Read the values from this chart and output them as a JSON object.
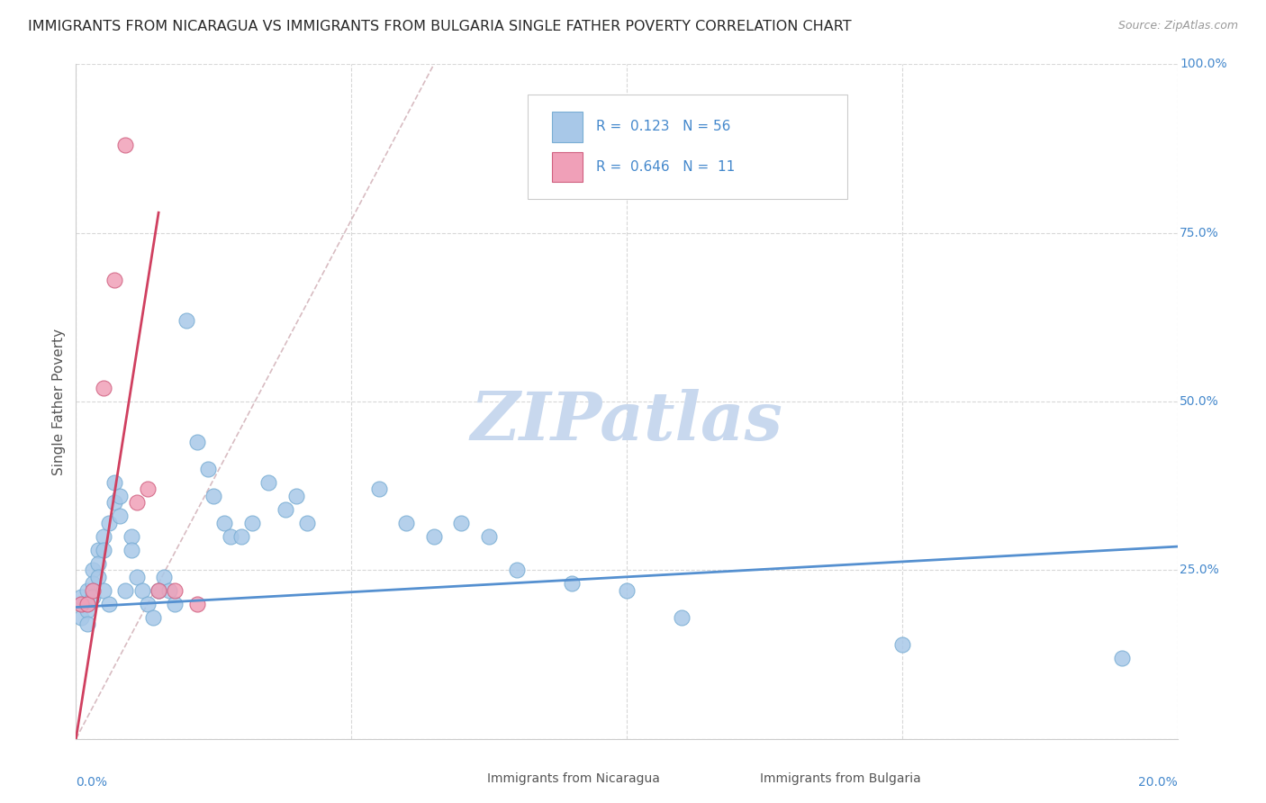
{
  "title": "IMMIGRANTS FROM NICARAGUA VS IMMIGRANTS FROM BULGARIA SINGLE FATHER POVERTY CORRELATION CHART",
  "source": "Source: ZipAtlas.com",
  "ylabel": "Single Father Poverty",
  "xlim": [
    0.0,
    0.2
  ],
  "ylim": [
    0.0,
    1.0
  ],
  "nicaragua_color": "#a8c8e8",
  "nicaragua_edge": "#7aaed4",
  "bulgaria_color": "#f0a0b8",
  "bulgaria_edge": "#d06080",
  "line_nicaragua_color": "#5590d0",
  "line_bulgaria_color": "#d04060",
  "dash_line_color": "#c8a0a8",
  "watermark_color": "#c8d8ee",
  "background_color": "#ffffff",
  "grid_color": "#d8d8d8",
  "title_color": "#282828",
  "axis_label_color": "#4488cc",
  "nicaragua_x": [
    0.001,
    0.001,
    0.001,
    0.002,
    0.002,
    0.002,
    0.002,
    0.003,
    0.003,
    0.003,
    0.004,
    0.004,
    0.004,
    0.005,
    0.005,
    0.005,
    0.006,
    0.006,
    0.007,
    0.007,
    0.008,
    0.008,
    0.009,
    0.01,
    0.01,
    0.011,
    0.012,
    0.013,
    0.014,
    0.015,
    0.016,
    0.017,
    0.018,
    0.02,
    0.022,
    0.024,
    0.025,
    0.027,
    0.028,
    0.03,
    0.032,
    0.035,
    0.038,
    0.04,
    0.042,
    0.055,
    0.06,
    0.065,
    0.07,
    0.075,
    0.08,
    0.09,
    0.1,
    0.11,
    0.15,
    0.19
  ],
  "nicaragua_y": [
    0.2,
    0.21,
    0.18,
    0.22,
    0.2,
    0.19,
    0.17,
    0.25,
    0.23,
    0.21,
    0.28,
    0.26,
    0.24,
    0.3,
    0.28,
    0.22,
    0.32,
    0.2,
    0.38,
    0.35,
    0.36,
    0.33,
    0.22,
    0.3,
    0.28,
    0.24,
    0.22,
    0.2,
    0.18,
    0.22,
    0.24,
    0.22,
    0.2,
    0.62,
    0.44,
    0.4,
    0.36,
    0.32,
    0.3,
    0.3,
    0.32,
    0.38,
    0.34,
    0.36,
    0.32,
    0.37,
    0.32,
    0.3,
    0.32,
    0.3,
    0.25,
    0.23,
    0.22,
    0.18,
    0.14,
    0.12
  ],
  "bulgaria_x": [
    0.001,
    0.002,
    0.003,
    0.005,
    0.007,
    0.009,
    0.011,
    0.013,
    0.015,
    0.018,
    0.022
  ],
  "bulgaria_y": [
    0.2,
    0.2,
    0.22,
    0.52,
    0.68,
    0.88,
    0.35,
    0.37,
    0.22,
    0.22,
    0.2
  ],
  "nic_line_x0": 0.0,
  "nic_line_x1": 0.2,
  "nic_line_y0": 0.195,
  "nic_line_y1": 0.285,
  "bul_line_x0": 0.0,
  "bul_line_x1": 0.015,
  "bul_line_y0": 0.0,
  "bul_line_y1": 0.78,
  "dash_line_x0": 0.0,
  "dash_line_x1": 0.065,
  "dash_line_y0": 0.0,
  "dash_line_y1": 1.0
}
